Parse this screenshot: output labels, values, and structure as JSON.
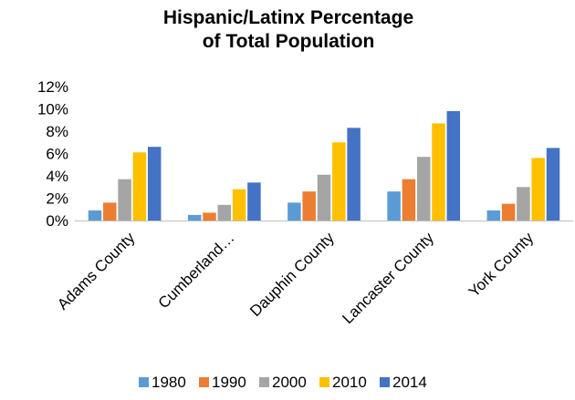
{
  "chart_data": {
    "type": "bar",
    "title_lines": [
      "Hispanic/Latinx Percentage",
      "of Total Population"
    ],
    "categories": [
      "Adams County",
      "Cumberland…",
      "Dauphin County",
      "Lancaster County",
      "York County"
    ],
    "series": [
      {
        "name": "1980",
        "color": "#5B9BD5",
        "values": [
          0.9,
          0.5,
          1.6,
          2.6,
          0.9
        ]
      },
      {
        "name": "1990",
        "color": "#ED7D31",
        "values": [
          1.6,
          0.7,
          2.6,
          3.7,
          1.5
        ]
      },
      {
        "name": "2000",
        "color": "#A5A5A5",
        "values": [
          3.7,
          1.4,
          4.1,
          5.7,
          3.0
        ]
      },
      {
        "name": "2010",
        "color": "#FFC000",
        "values": [
          6.1,
          2.8,
          7.0,
          8.7,
          5.6
        ]
      },
      {
        "name": "2014",
        "color": "#4472C4",
        "values": [
          6.6,
          3.4,
          8.3,
          9.8,
          6.5
        ]
      }
    ],
    "y_ticks": [
      "0%",
      "2%",
      "4%",
      "6%",
      "8%",
      "10%",
      "12%"
    ],
    "ylim": [
      0,
      12
    ],
    "grid": false,
    "legend_position": "bottom"
  }
}
